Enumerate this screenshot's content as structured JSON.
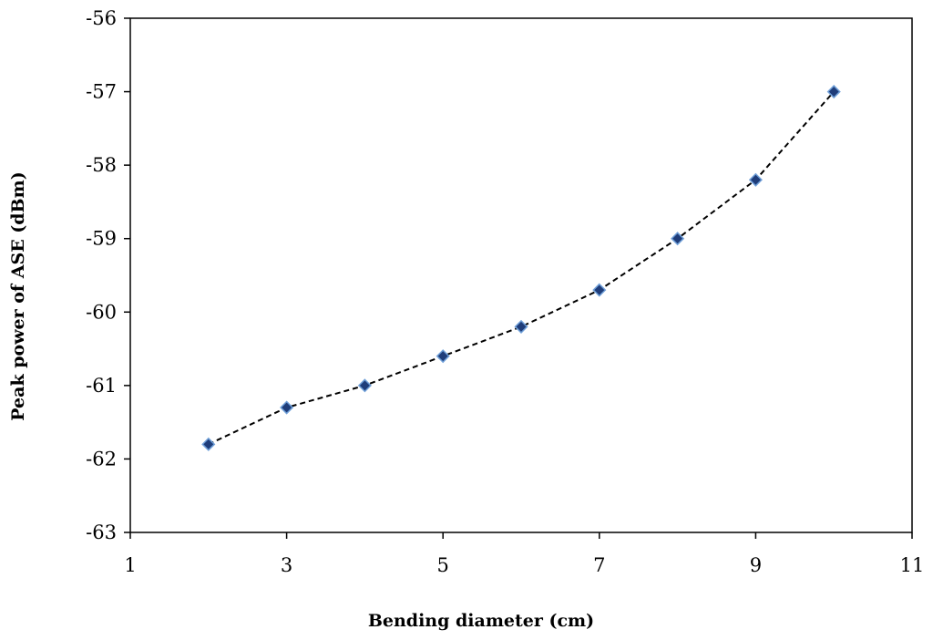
{
  "chart_data": {
    "type": "line",
    "title": "",
    "xlabel": "Bending diameter (cm)",
    "ylabel": "Peak power of ASE (dBm)",
    "xlim": [
      1,
      11
    ],
    "ylim": [
      -63,
      -56
    ],
    "xticks": [
      1,
      3,
      5,
      7,
      9,
      11
    ],
    "yticks": [
      -63,
      -62,
      -61,
      -60,
      -59,
      -58,
      -57,
      -56
    ],
    "grid": false,
    "legend": "none",
    "series": [
      {
        "x": [
          2,
          3,
          4,
          5,
          6,
          7,
          8,
          9,
          10
        ],
        "y": [
          -61.8,
          -61.3,
          -61.0,
          -60.6,
          -60.2,
          -59.7,
          -59.0,
          -58.2,
          -57.0
        ],
        "line_style": "dashed",
        "marker": "diamond",
        "marker_color": "#1f3d7a",
        "line_color": "#000000"
      }
    ]
  }
}
